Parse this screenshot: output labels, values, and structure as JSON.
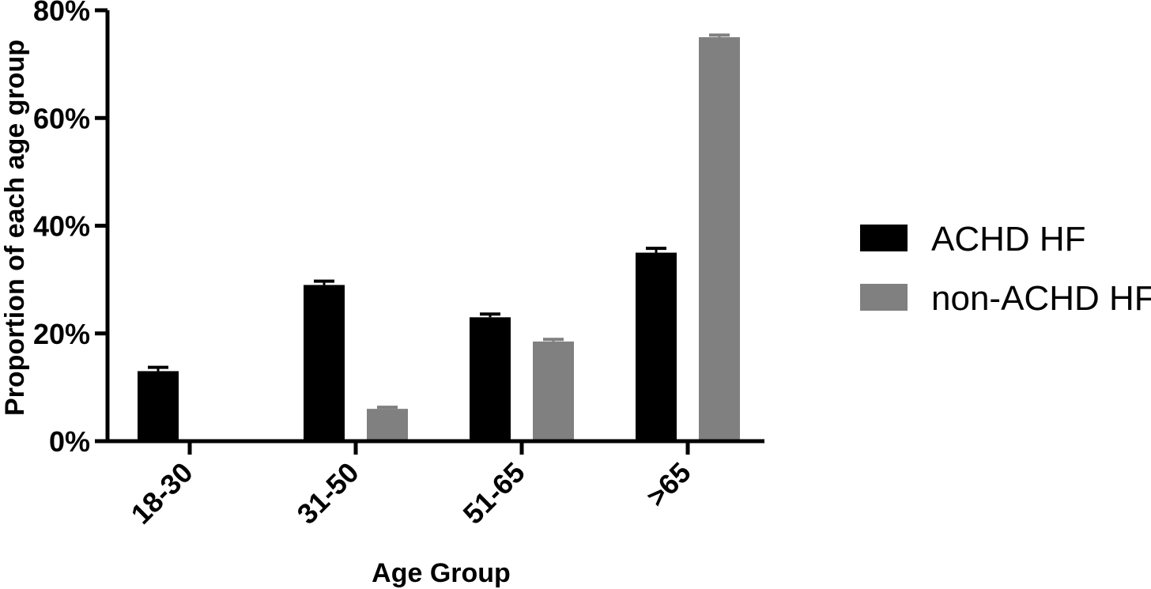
{
  "chart_data": {
    "type": "bar",
    "title": "",
    "xlabel": "Age Group",
    "ylabel": "Proportion of each age group",
    "categories": [
      "18-30",
      "31-50",
      "51-65",
      ">65"
    ],
    "ylim": [
      0,
      80
    ],
    "yticks": [
      0,
      20,
      40,
      60,
      80
    ],
    "ytick_labels": [
      "0%",
      "20%",
      "40%",
      "60%",
      "80%"
    ],
    "series": [
      {
        "name": "ACHD HF",
        "values": [
          13,
          29,
          23,
          35
        ],
        "error": [
          0.7,
          0.7,
          0.6,
          0.8
        ],
        "color": "#000000"
      },
      {
        "name": "non-ACHD HF",
        "values": [
          0,
          6,
          18.5,
          75
        ],
        "error": [
          0,
          0.3,
          0.4,
          0.4
        ],
        "color": "#808080"
      }
    ],
    "legend_position": "right",
    "grid": false
  }
}
